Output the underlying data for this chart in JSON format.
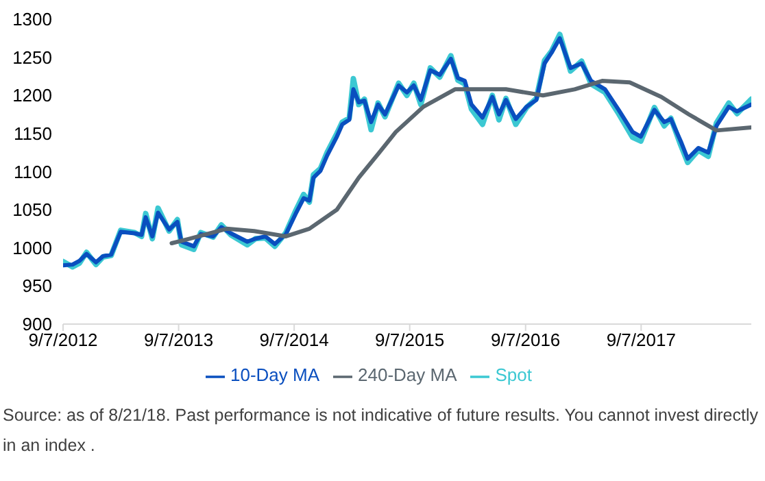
{
  "chart_data": {
    "type": "line",
    "marker": "none",
    "line_style": "solid",
    "grid": false,
    "legend": "bottom",
    "annotations": [
      "Source: as of 8/21/18. Past performance is not indicative of future results. You cannot invest directly in an index ."
    ],
    "xlim": [
      "2012-09-07",
      "2018-08-21"
    ],
    "xticks": [
      {
        "value": "2012-09-07",
        "label": "9/7/2012"
      },
      {
        "value": "2013-09-07",
        "label": "9/7/2013"
      },
      {
        "value": "2014-09-07",
        "label": "9/7/2014"
      },
      {
        "value": "2015-09-07",
        "label": "9/7/2015"
      },
      {
        "value": "2016-09-07",
        "label": "9/7/2016"
      },
      {
        "value": "2017-09-07",
        "label": "9/7/2017"
      }
    ],
    "ylim": [
      900,
      1300
    ],
    "yticks": [
      900,
      950,
      1000,
      1050,
      1100,
      1150,
      1200,
      1250,
      1300
    ],
    "x": [
      "2012-09-07",
      "2012-10-07",
      "2012-10-29",
      "2012-11-20",
      "2012-12-20",
      "2013-01-11",
      "2013-02-06",
      "2013-03-08",
      "2013-04-21",
      "2013-05-13",
      "2013-05-26",
      "2013-06-16",
      "2013-07-04",
      "2013-08-08",
      "2013-09-03",
      "2013-09-16",
      "2013-10-25",
      "2013-11-16",
      "2013-12-25",
      "2014-01-20",
      "2014-02-19",
      "2014-04-12",
      "2014-05-08",
      "2014-06-08",
      "2014-07-08",
      "2014-08-12",
      "2014-09-11",
      "2014-10-07",
      "2014-10-25",
      "2014-11-07",
      "2014-11-29",
      "2014-12-20",
      "2015-01-20",
      "2015-02-06",
      "2015-02-28",
      "2015-03-13",
      "2015-03-30",
      "2015-04-17",
      "2015-05-08",
      "2015-05-30",
      "2015-06-21",
      "2015-08-03",
      "2015-08-29",
      "2015-09-20",
      "2015-10-12",
      "2015-11-11",
      "2015-12-11",
      "2016-01-15",
      "2016-02-06",
      "2016-02-28",
      "2016-03-20",
      "2016-04-24",
      "2016-05-25",
      "2016-06-15",
      "2016-07-07",
      "2016-08-07",
      "2016-09-10",
      "2016-10-11",
      "2016-11-06",
      "2016-11-28",
      "2016-12-24",
      "2017-01-27",
      "2017-03-03",
      "2017-04-02",
      "2017-05-16",
      "2017-06-28",
      "2017-08-11",
      "2017-09-06",
      "2017-10-19",
      "2017-11-19",
      "2017-12-10",
      "2018-01-10",
      "2018-02-01",
      "2018-03-07",
      "2018-04-07",
      "2018-05-03",
      "2018-06-11",
      "2018-07-07",
      "2018-08-21"
    ],
    "series": [
      {
        "name": "Spot",
        "color": "#3cc8d2",
        "values": [
          982,
          975,
          980,
          994,
          978,
          988,
          990,
          1023,
          1020,
          1015,
          1045,
          1012,
          1052,
          1022,
          1037,
          1004,
          998,
          1020,
          1014,
          1030,
          1017,
          1004,
          1012,
          1013,
          1002,
          1020,
          1048,
          1070,
          1060,
          1096,
          1104,
          1125,
          1150,
          1165,
          1170,
          1222,
          1188,
          1195,
          1155,
          1190,
          1172,
          1216,
          1200,
          1216,
          1188,
          1236,
          1224,
          1252,
          1220,
          1215,
          1182,
          1162,
          1200,
          1168,
          1196,
          1162,
          1184,
          1196,
          1246,
          1258,
          1280,
          1232,
          1245,
          1215,
          1204,
          1176,
          1145,
          1140,
          1184,
          1160,
          1170,
          1135,
          1112,
          1128,
          1120,
          1164,
          1190,
          1176,
          1195
        ]
      },
      {
        "name": "10-Day MA",
        "color": "#0a4fbf",
        "values": [
          977,
          978,
          983,
          992,
          981,
          989,
          991,
          1021,
          1019,
          1017,
          1040,
          1015,
          1046,
          1024,
          1034,
          1008,
          1002,
          1018,
          1015,
          1027,
          1019,
          1008,
          1012,
          1015,
          1005,
          1018,
          1044,
          1065,
          1062,
          1092,
          1101,
          1121,
          1146,
          1162,
          1168,
          1208,
          1191,
          1193,
          1165,
          1188,
          1175,
          1213,
          1204,
          1213,
          1194,
          1233,
          1227,
          1248,
          1223,
          1219,
          1188,
          1171,
          1198,
          1175,
          1194,
          1169,
          1185,
          1194,
          1242,
          1256,
          1275,
          1236,
          1242,
          1219,
          1208,
          1181,
          1152,
          1146,
          1181,
          1165,
          1169,
          1140,
          1117,
          1131,
          1125,
          1160,
          1185,
          1179,
          1188
        ]
      },
      {
        "name": "240-Day MA",
        "color": "#5b6770",
        "x": [
          "2013-08-16",
          "2013-10-12",
          "2014-02-06",
          "2014-05-04",
          "2014-08-12",
          "2014-10-25",
          "2015-01-20",
          "2015-03-30",
          "2015-05-30",
          "2015-07-25",
          "2015-10-20",
          "2016-01-28",
          "2016-07-07",
          "2016-11-01",
          "2017-02-09",
          "2017-05-07",
          "2017-08-02",
          "2017-11-10",
          "2018-02-05",
          "2018-05-03",
          "2018-08-21"
        ],
        "values": [
          1006,
          1012,
          1025,
          1022,
          1015,
          1025,
          1050,
          1092,
          1123,
          1152,
          1185,
          1208,
          1208,
          1200,
          1208,
          1219,
          1217,
          1198,
          1175,
          1154,
          1158
        ]
      }
    ]
  }
}
